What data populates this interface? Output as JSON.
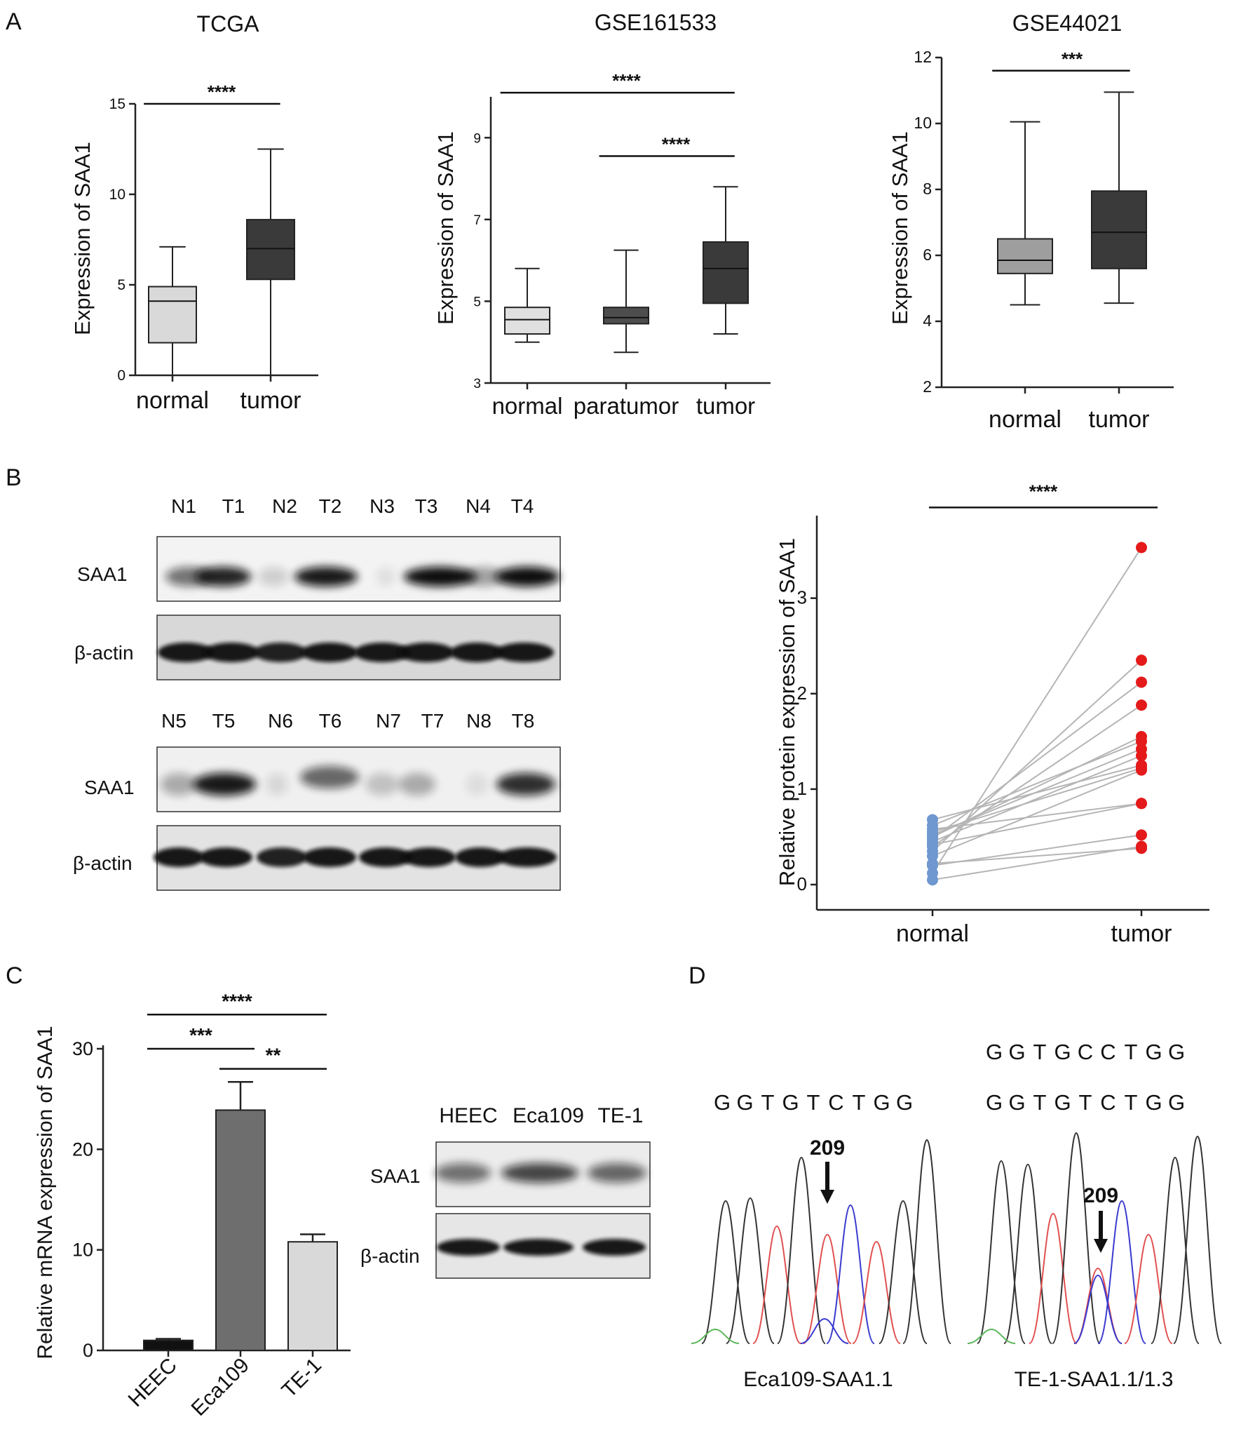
{
  "panel_letters": [
    "A",
    "B",
    "C",
    "D"
  ],
  "chart_data": [
    {
      "id": "tcga",
      "type": "box",
      "title": "TCGA",
      "ylabel": "Expression of SAA1",
      "ylim": [
        0,
        15
      ],
      "yticks": [
        "0",
        "5",
        "10",
        "15"
      ],
      "categories": [
        "normal",
        "tumor"
      ],
      "boxes": [
        {
          "min": 0,
          "q1": 1.8,
          "median": 4.1,
          "q3": 4.9,
          "max": 7.1,
          "color": "#d9d9d9"
        },
        {
          "min": 0,
          "q1": 5.3,
          "median": 7.0,
          "q3": 8.6,
          "max": 12.5,
          "color": "#3a3a3a"
        }
      ],
      "significance": [
        {
          "from": 0,
          "to": 1,
          "y": 15,
          "label": "****"
        }
      ]
    },
    {
      "id": "gse161533",
      "type": "box",
      "title": "GSE161533",
      "ylabel": "Expression of SAA1",
      "ylim": [
        3,
        10
      ],
      "yticks": [
        "3",
        "5",
        "7",
        "9"
      ],
      "categories": [
        "normal",
        "paratumor",
        "tumor"
      ],
      "boxes": [
        {
          "min": 4.0,
          "q1": 4.2,
          "median": 4.55,
          "q3": 4.85,
          "max": 5.8,
          "color": "#e0e0e0"
        },
        {
          "min": 3.75,
          "q1": 4.45,
          "median": 4.6,
          "q3": 4.85,
          "max": 6.25,
          "color": "#4d4d4d"
        },
        {
          "min": 4.2,
          "q1": 4.95,
          "median": 5.8,
          "q3": 6.45,
          "max": 7.8,
          "color": "#3a3a3a"
        }
      ],
      "significance": [
        {
          "from": 0,
          "to": 2,
          "y": 10.1,
          "label": "****"
        },
        {
          "from": 1,
          "to": 2,
          "y": 8.55,
          "label": "****"
        }
      ]
    },
    {
      "id": "gse44021",
      "type": "box",
      "title": "GSE44021",
      "ylabel": "Expression of SAA1",
      "ylim": [
        2,
        12
      ],
      "yticks": [
        "2",
        "4",
        "6",
        "8",
        "10",
        "12"
      ],
      "categories": [
        "normal",
        "tumor"
      ],
      "boxes": [
        {
          "min": 4.5,
          "q1": 5.45,
          "median": 5.85,
          "q3": 6.5,
          "max": 10.05,
          "color": "#9e9e9e"
        },
        {
          "min": 4.55,
          "q1": 5.6,
          "median": 6.7,
          "q3": 7.95,
          "max": 10.95,
          "color": "#3a3a3a"
        }
      ],
      "significance": [
        {
          "from": 0,
          "to": 1,
          "y": 11.6,
          "label": "***"
        }
      ]
    },
    {
      "id": "paired",
      "type": "scatter",
      "ylabel": "Relative protein expression of SAA1",
      "ylim": [
        0,
        3.6
      ],
      "yticks": [
        "0",
        "1",
        "2",
        "3"
      ],
      "categories": [
        "normal",
        "tumor"
      ],
      "normal": [
        0.05,
        0.12,
        0.2,
        0.22,
        0.3,
        0.35,
        0.4,
        0.42,
        0.45,
        0.48,
        0.5,
        0.52,
        0.55,
        0.58,
        0.62,
        0.68
      ],
      "tumor": [
        0.4,
        3.53,
        0.52,
        0.38,
        1.2,
        2.35,
        1.88,
        0.85,
        1.35,
        2.12,
        1.55,
        1.42,
        1.22,
        0.85,
        1.5,
        1.25
      ],
      "normal_color": "#6f97d0",
      "tumor_color": "#e51a1a",
      "significance": [
        {
          "from": 0,
          "to": 1,
          "y": 3.95,
          "label": "****"
        }
      ]
    },
    {
      "id": "mrna",
      "type": "bar",
      "ylabel": "Relative  mRNA expression of SAA1",
      "ylim": [
        0,
        30
      ],
      "yticks": [
        "0",
        "10",
        "20",
        "30"
      ],
      "categories": [
        "HEEC",
        "Eca109",
        "TE-1"
      ],
      "values": [
        1.0,
        23.9,
        10.8
      ],
      "errors": [
        0.15,
        2.8,
        0.75
      ],
      "colors": [
        "#111111",
        "#6e6e6e",
        "#d9d9d9"
      ],
      "significance": [
        {
          "from": 0,
          "to": 1,
          "y": 30.0,
          "label": "***"
        },
        {
          "from": 1,
          "to": 2,
          "y": 28.0,
          "label": "**"
        },
        {
          "from": 0,
          "to": 2,
          "y": 33.4,
          "label": "****"
        }
      ]
    }
  ],
  "western_b": {
    "row1_lanes": [
      "N1",
      "T1",
      "N2",
      "T2",
      "N3",
      "T3",
      "N4",
      "T4"
    ],
    "row2_lanes": [
      "N5",
      "T5",
      "N6",
      "T6",
      "N7",
      "T7",
      "N8",
      "T8"
    ],
    "saa1_label": "SAA1",
    "actin_label": "β-actin"
  },
  "western_c": {
    "lanes": [
      "HEEC",
      "Eca109",
      "TE-1"
    ],
    "saa1_label": "SAA1",
    "actin_label": "β-actin"
  },
  "sequencing": {
    "left": {
      "bases": "GGTGTCTGG",
      "position": "209",
      "caption": "Eca109-SAA1.1"
    },
    "right": {
      "bases_top": "GGTGCCTGG",
      "bases_bottom": "GGTGTCTGG",
      "position": "209",
      "caption": "TE-1-SAA1.1/1.3"
    },
    "highlight_color": "#d42020"
  }
}
